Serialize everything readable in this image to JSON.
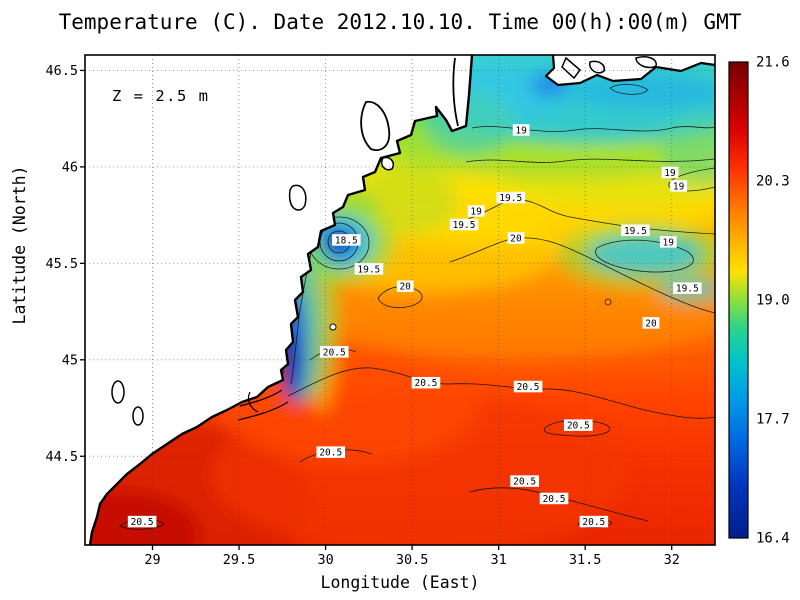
{
  "figure": {
    "title": "Temperature (C). Date 2012.10.10. Time 00(h):00(m) GMT",
    "depth_annotation": "Z = 2.5 m",
    "xlabel": "Longitude (East)",
    "ylabel": "Latitude (North)"
  },
  "chart_data": {
    "type": "heatmap",
    "subtype": "filled-contour-map",
    "title": "Temperature (C). Date 2012.10.10. Time 00(h):00(m) GMT",
    "variable": "Temperature (C)",
    "date": "2012.10.10",
    "time": "00(h):00(m) GMT",
    "depth_label": "Z = 2.5 m",
    "xlabel": "Longitude (East)",
    "ylabel": "Latitude (North)",
    "grid_style": "dotted",
    "extent": {
      "lon_min": 28.61,
      "lon_max": 32.25,
      "lat_min": 44.04,
      "lat_max": 46.58
    },
    "x_ticks": {
      "values": [
        29,
        29.5,
        30,
        30.5,
        31,
        31.5,
        32
      ],
      "labels": [
        "29",
        "29.5",
        "30",
        "30.5",
        "31",
        "31.5",
        "32"
      ]
    },
    "y_ticks": {
      "values": [
        46.5,
        46,
        45.5,
        45,
        44.5
      ],
      "labels": [
        "46.5",
        "46",
        "45.5",
        "45",
        "44.5"
      ]
    },
    "colorbar": {
      "min": 16.4,
      "max": 21.6,
      "tick_labels_top_to_bottom": [
        "21.6",
        "20.3",
        "19.0",
        "17.7",
        "16.4"
      ],
      "colormap_name": "jet",
      "colormap_hex_top_to_bottom": [
        "#760000",
        "#a80000",
        "#d80000",
        "#ff2e00",
        "#ff7300",
        "#ffad00",
        "#ffe100",
        "#8ce03c",
        "#28d48c",
        "#00c4cc",
        "#009ae8",
        "#0066e0",
        "#0036bc",
        "#001f8a"
      ]
    },
    "contour_levels_c": [
      18.5,
      19,
      19.5,
      20,
      20.5
    ],
    "contour_labels": [
      {
        "t": "19",
        "lon": 31.13,
        "lat": 46.19
      },
      {
        "t": "19",
        "lon": 31.99,
        "lat": 45.97
      },
      {
        "t": "19",
        "lon": 32.04,
        "lat": 45.9
      },
      {
        "t": "19.5",
        "lon": 31.07,
        "lat": 45.84
      },
      {
        "t": "19",
        "lon": 30.87,
        "lat": 45.77
      },
      {
        "t": "19.5",
        "lon": 30.8,
        "lat": 45.7
      },
      {
        "t": "18.5",
        "lon": 30.12,
        "lat": 45.62
      },
      {
        "t": "20",
        "lon": 31.1,
        "lat": 45.63
      },
      {
        "t": "19.5",
        "lon": 31.79,
        "lat": 45.67
      },
      {
        "t": "19",
        "lon": 31.98,
        "lat": 45.61
      },
      {
        "t": "19.5",
        "lon": 30.25,
        "lat": 45.47
      },
      {
        "t": "20",
        "lon": 30.46,
        "lat": 45.38
      },
      {
        "t": "19.5",
        "lon": 32.09,
        "lat": 45.37
      },
      {
        "t": "20",
        "lon": 31.88,
        "lat": 45.19
      },
      {
        "t": "20.5",
        "lon": 30.05,
        "lat": 45.04
      },
      {
        "t": "20.5",
        "lon": 30.58,
        "lat": 44.88
      },
      {
        "t": "20.5",
        "lon": 31.17,
        "lat": 44.86
      },
      {
        "t": "20.5",
        "lon": 31.46,
        "lat": 44.66
      },
      {
        "t": "20.5",
        "lon": 30.03,
        "lat": 44.52
      },
      {
        "t": "20.5",
        "lon": 31.15,
        "lat": 44.37
      },
      {
        "t": "20.5",
        "lon": 31.32,
        "lat": 44.28
      },
      {
        "t": "20.5",
        "lon": 31.55,
        "lat": 44.16
      },
      {
        "t": "20.5",
        "lon": 28.94,
        "lat": 44.16
      }
    ],
    "approx_sst_grid": {
      "lons": [
        29,
        29.5,
        30,
        30.5,
        31,
        31.5,
        32
      ],
      "lats": [
        46.5,
        46,
        45.5,
        45,
        44.5
      ],
      "values_c": [
        [
          null,
          null,
          null,
          19.2,
          19.0,
          null,
          19.0
        ],
        [
          null,
          null,
          null,
          19.5,
          19.6,
          19.3,
          19.0
        ],
        [
          null,
          null,
          18.8,
          19.9,
          20.0,
          19.6,
          19.4
        ],
        [
          null,
          null,
          20.4,
          20.3,
          20.2,
          20.3,
          20.2
        ],
        [
          20.8,
          20.7,
          20.6,
          20.5,
          20.4,
          20.5,
          20.4
        ]
      ],
      "note_cold_features": [
        {
          "feature": "cold core",
          "lon": 30.09,
          "lat": 45.61,
          "approx_c": 16.8
        },
        {
          "feature": "cold coastal strip",
          "lon": 29.79,
          "lat": 45.08,
          "approx_c": 17.0
        }
      ]
    },
    "map_features": {
      "land_fill": "#ffffff",
      "coastline_color": "#000000"
    }
  }
}
